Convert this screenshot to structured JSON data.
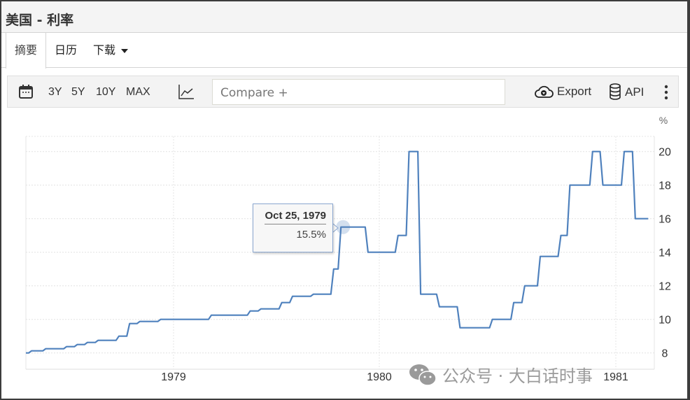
{
  "window": {
    "title": "美国 - 利率"
  },
  "tabs": [
    {
      "label": "摘要",
      "active": true
    },
    {
      "label": "日历"
    },
    {
      "label": "下载"
    }
  ],
  "toolbar": {
    "ranges": [
      "3Y",
      "5Y",
      "10Y",
      "MAX"
    ],
    "compare_placeholder": "Compare +",
    "export_label": "Export",
    "api_label": "API"
  },
  "tooltip": {
    "date": "Oct 25, 1979",
    "value": "15.5%"
  },
  "watermark": "公众号 · 大白话时事",
  "chart_data": {
    "type": "line",
    "title": "",
    "unit": "%",
    "line_color": "#4f81bd",
    "step": true,
    "grid": true,
    "xticks": [
      "1979",
      "1980",
      "1981"
    ],
    "yticks": [
      8,
      10,
      12,
      14,
      16,
      18,
      20
    ],
    "ylim": [
      7.5,
      20.9
    ],
    "xlim": [
      "1978-04-14",
      "1981-02-25"
    ],
    "points": [
      [
        "1978-04-14",
        8.0
      ],
      [
        "1978-04-24",
        8.125
      ],
      [
        "1978-05-19",
        8.25
      ],
      [
        "1978-06-25",
        8.375
      ],
      [
        "1978-07-14",
        8.5
      ],
      [
        "1978-08-01",
        8.625
      ],
      [
        "1978-08-20",
        8.75
      ],
      [
        "1978-09-26",
        9.0
      ],
      [
        "1978-10-15",
        9.75
      ],
      [
        "1978-11-02",
        9.875
      ],
      [
        "1978-12-09",
        10.0
      ],
      [
        "1979-03-09",
        10.25
      ],
      [
        "1979-05-17",
        10.5
      ],
      [
        "1979-06-05",
        10.625
      ],
      [
        "1979-07-12",
        11.0
      ],
      [
        "1979-07-31",
        11.375
      ],
      [
        "1979-09-06",
        11.5
      ],
      [
        "1979-10-12",
        13.0
      ],
      [
        "1979-10-25",
        15.5
      ],
      [
        "1979-12-12",
        14.0
      ],
      [
        "1980-01-30",
        15.0
      ],
      [
        "1980-02-16",
        20.0
      ],
      [
        "1980-03-05",
        11.5
      ],
      [
        "1980-04-03",
        10.75
      ],
      [
        "1980-05-05",
        9.5
      ],
      [
        "1980-06-24",
        10.0
      ],
      [
        "1980-07-27",
        11.0
      ],
      [
        "1980-08-13",
        12.0
      ],
      [
        "1980-09-06",
        13.75
      ],
      [
        "1980-10-08",
        15.0
      ],
      [
        "1980-10-22",
        18.0
      ],
      [
        "1980-11-26",
        20.0
      ],
      [
        "1980-12-12",
        18.0
      ],
      [
        "1981-01-14",
        20.0
      ],
      [
        "1981-01-31",
        16.0
      ],
      [
        "1981-02-20",
        16.0
      ]
    ],
    "highlight": {
      "date": "1979-10-25",
      "value": 15.5
    }
  }
}
